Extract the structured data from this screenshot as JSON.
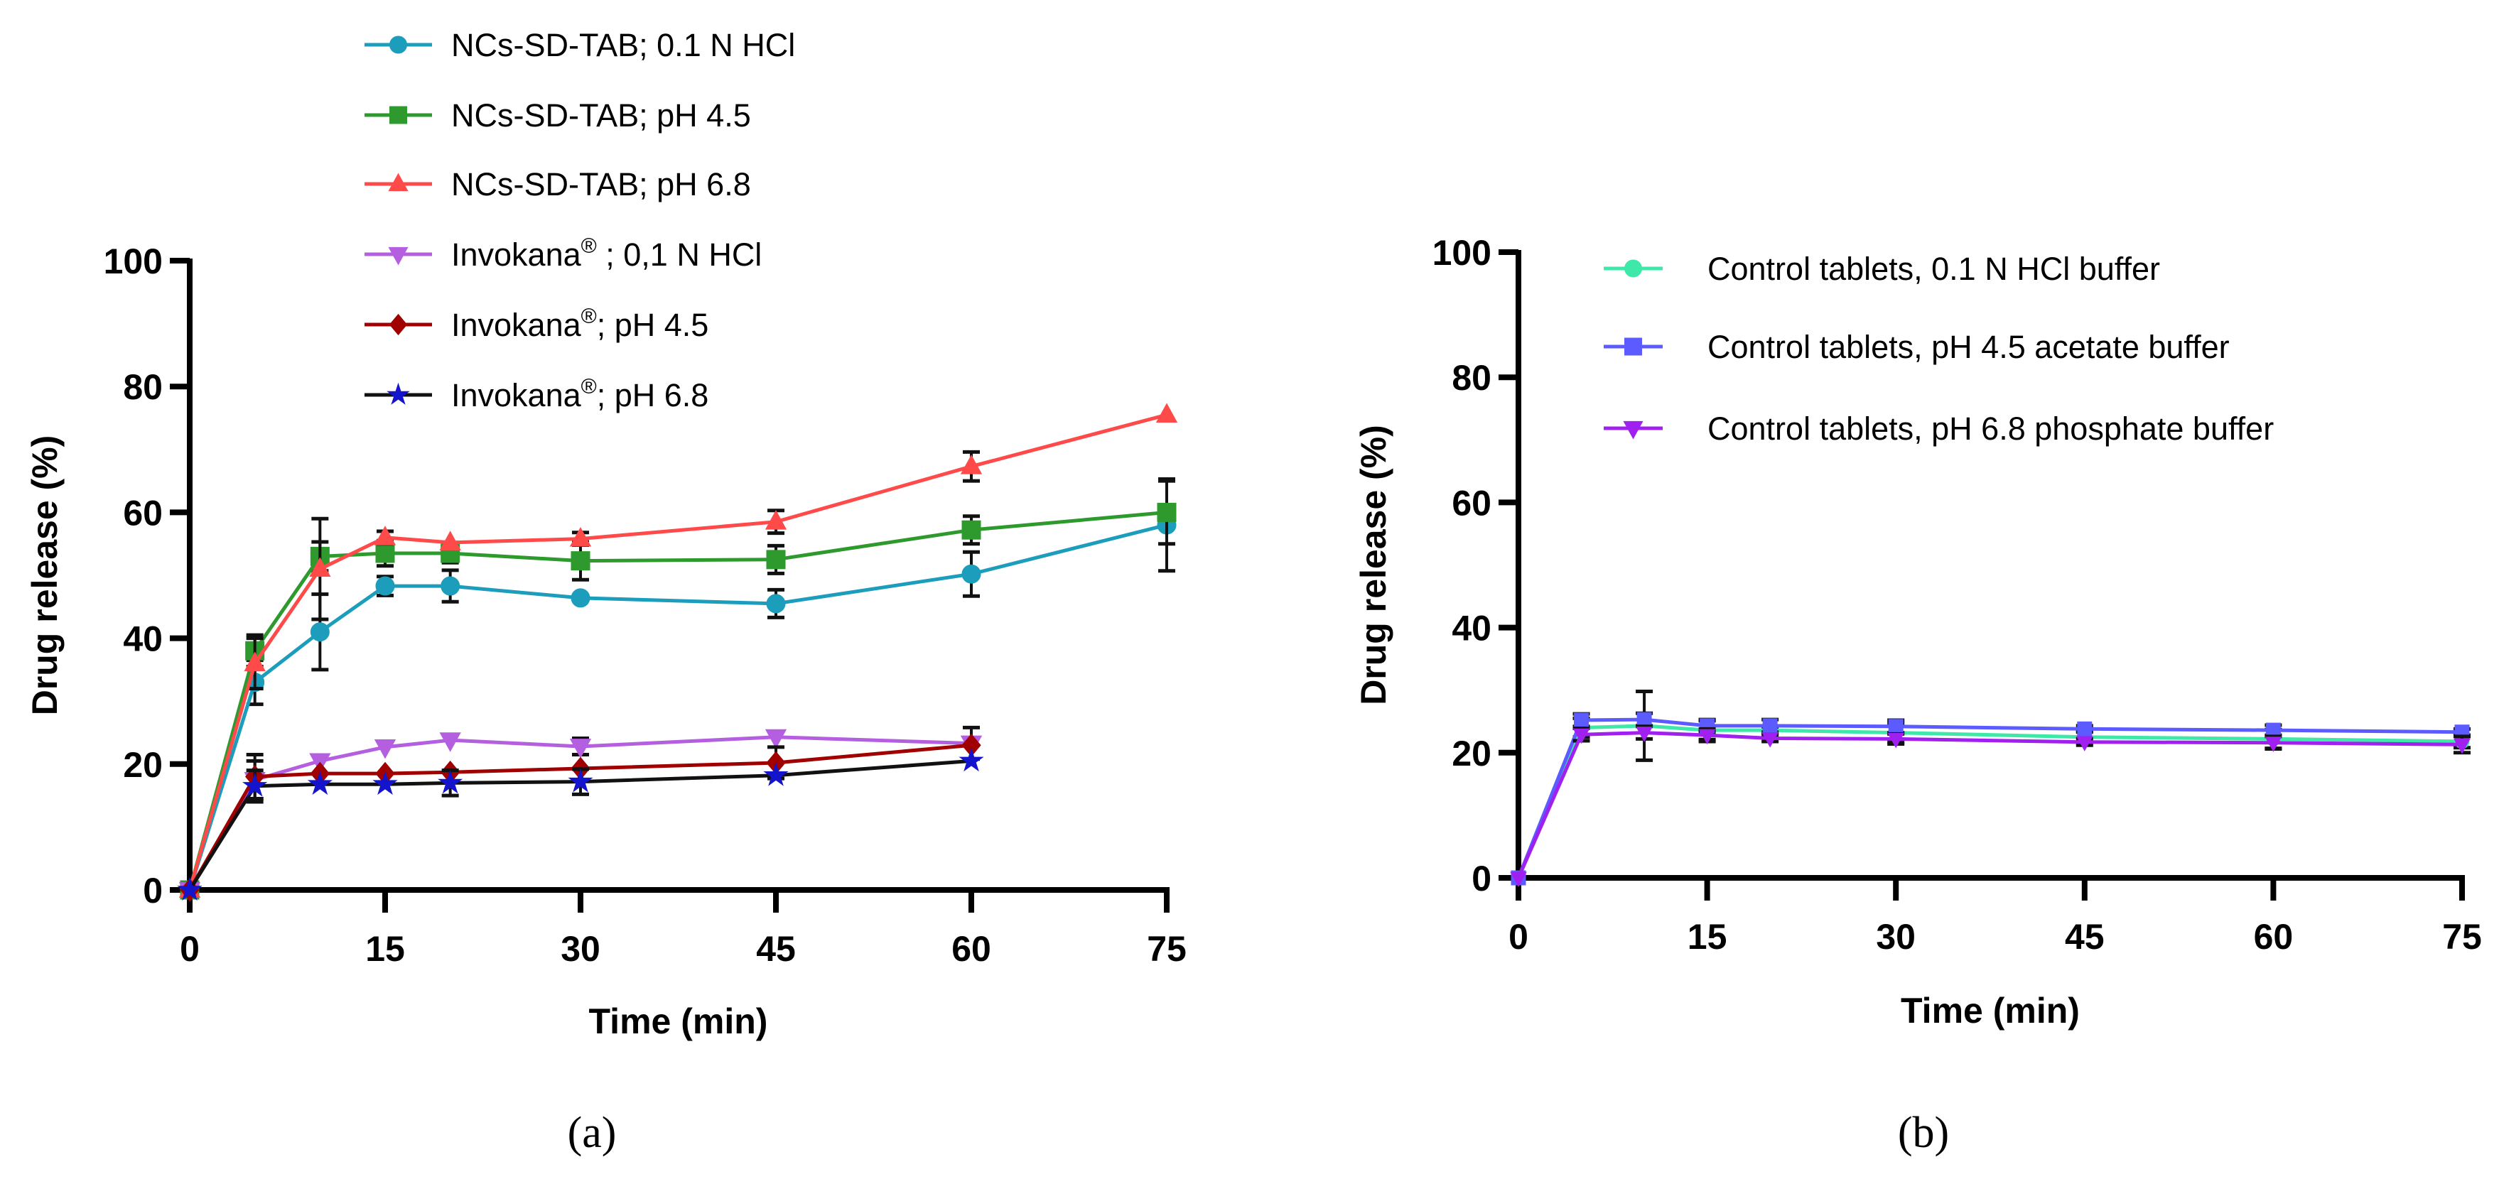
{
  "chart_data": [
    {
      "type": "line",
      "panel_label": "(a)",
      "xlabel": "Time (min)",
      "ylabel": "Drug release (%)",
      "xlim": [
        0,
        75
      ],
      "ylim": [
        0,
        100
      ],
      "xticks": [
        "0",
        "15",
        "30",
        "45",
        "60",
        "75"
      ],
      "yticks": [
        "0",
        "20",
        "40",
        "60",
        "80",
        "100"
      ],
      "legend_position": "top",
      "series": [
        {
          "name": "NCs-SD-TAB; 0.1 N HCl",
          "label_parts": [
            "NCs-SD-TAB; 0.1 N HCl",
            "",
            ""
          ],
          "color": "#1b9dbb",
          "line_color": "#1b9dbb",
          "marker": "circle",
          "x": [
            0,
            5,
            10,
            15,
            20,
            30,
            45,
            60,
            75
          ],
          "y": [
            0,
            33,
            41,
            48.3,
            48.3,
            46.4,
            45.5,
            50.2,
            58
          ],
          "err": [
            0,
            3.5,
            6,
            1.5,
            2.5,
            0,
            2.2,
            3.5,
            7.3
          ]
        },
        {
          "name": "NCs-SD-TAB; pH 4.5",
          "label_parts": [
            "NCs-SD-TAB; pH 4.5",
            "",
            ""
          ],
          "color": "#2e9a2e",
          "line_color": "#2e9a2e",
          "marker": "square",
          "x": [
            0,
            5,
            10,
            15,
            20,
            30,
            45,
            60,
            75
          ],
          "y": [
            0,
            38,
            53,
            53.5,
            53.5,
            52.3,
            52.5,
            57.2,
            60
          ],
          "err": [
            0,
            2.5,
            2.3,
            2,
            1.5,
            3,
            2.2,
            2.2,
            5
          ]
        },
        {
          "name": "NCs-SD-TAB; pH 6.8",
          "label_parts": [
            "NCs-SD-TAB; pH 6.8",
            "",
            ""
          ],
          "color": "#ff4a4a",
          "line_color": "#ff4a4a",
          "marker": "triangle",
          "x": [
            0,
            5,
            10,
            15,
            20,
            30,
            45,
            60,
            75
          ],
          "y": [
            0,
            36,
            51,
            56,
            55.2,
            55.8,
            58.5,
            67.3,
            75.5
          ],
          "err": [
            0,
            4,
            8,
            1,
            0,
            1,
            1.8,
            2.3,
            0
          ]
        },
        {
          "name": "Invokana® ; 0,1 N HCl",
          "label_parts": [
            "Invokana",
            "®",
            " ; 0,1 N HCl"
          ],
          "color": "#b45ee0",
          "line_color": "#b45ee0",
          "marker": "triangle-down",
          "x": [
            0,
            5,
            10,
            15,
            20,
            30,
            45,
            60
          ],
          "y": [
            0,
            17.5,
            20.5,
            22.7,
            23.8,
            22.8,
            24.3,
            23.3
          ],
          "err": [
            0,
            3,
            0,
            0,
            0,
            1.3,
            0,
            2.5
          ]
        },
        {
          "name": "Invokana®; pH 4.5",
          "label_parts": [
            "Invokana",
            "®",
            "; pH 4.5"
          ],
          "color": "#a00000",
          "line_color": "#a00000",
          "marker": "diamond",
          "x": [
            0,
            5,
            10,
            15,
            20,
            30,
            45,
            60
          ],
          "y": [
            0,
            18,
            18.5,
            18.5,
            18.7,
            19.3,
            20.2,
            23
          ],
          "err": [
            0,
            3.5,
            0,
            0,
            0,
            0,
            2.5,
            0
          ]
        },
        {
          "name": "Invokana®; pH 6.8",
          "label_parts": [
            "Invokana",
            "®",
            "; pH 6.8"
          ],
          "color": "#1414cc",
          "line_color": "#111111",
          "marker": "star",
          "x": [
            0,
            5,
            10,
            15,
            20,
            30,
            45,
            60
          ],
          "y": [
            0,
            16.5,
            16.8,
            16.8,
            17,
            17.2,
            18.2,
            20.5
          ],
          "err": [
            0,
            2.5,
            0,
            0,
            2,
            2,
            0,
            0
          ]
        }
      ]
    },
    {
      "type": "line",
      "panel_label": "(b)",
      "xlabel": "Time (min)",
      "ylabel": "Drug release (%)",
      "xlim": [
        0,
        75
      ],
      "ylim": [
        0,
        100
      ],
      "xticks": [
        "0",
        "15",
        "30",
        "45",
        "60",
        "75"
      ],
      "yticks": [
        "0",
        "20",
        "40",
        "60",
        "80",
        "100"
      ],
      "legend_position": "top-right",
      "series": [
        {
          "name": "Control tablets, 0.1 N HCl buffer",
          "label_parts": [
            "Control tablets, 0.1 N HCl buffer",
            "",
            ""
          ],
          "color": "#3ee8a8",
          "line_color": "#3ee8a8",
          "marker": "circle",
          "x": [
            0,
            5,
            10,
            15,
            20,
            30,
            45,
            60,
            75
          ],
          "y": [
            0,
            24,
            24.3,
            23.6,
            23.6,
            23.2,
            22.5,
            22.2,
            21.8
          ],
          "err": [
            0,
            1.5,
            5.5,
            1.5,
            0.5,
            1.5,
            1,
            1.5,
            1
          ]
        },
        {
          "name": "Control tablets, pH 4.5 acetate buffer",
          "label_parts": [
            "Control tablets, pH 4.5 acetate buffer",
            "",
            ""
          ],
          "color": "#5b5bff",
          "line_color": "#5b5bff",
          "marker": "square",
          "x": [
            0,
            5,
            10,
            15,
            20,
            30,
            45,
            60,
            75
          ],
          "y": [
            0,
            25.2,
            25.3,
            24.3,
            24.3,
            24.2,
            23.8,
            23.6,
            23.3
          ],
          "err": [
            0,
            1,
            1,
            1,
            1,
            1,
            0.5,
            0.8,
            0.5
          ]
        },
        {
          "name": "Control tablets, pH 6.8 phosphate buffer",
          "label_parts": [
            "Control tablets, pH 6.8 phosphate buffer",
            "",
            ""
          ],
          "color": "#a020f0",
          "line_color": "#a020f0",
          "marker": "triangle-down",
          "x": [
            0,
            5,
            10,
            15,
            20,
            30,
            45,
            60,
            75
          ],
          "y": [
            0,
            22.9,
            23.2,
            22.8,
            22.3,
            22.2,
            21.7,
            21.6,
            21.3
          ],
          "err": [
            0,
            1,
            1,
            1,
            0.5,
            0.8,
            0.5,
            1,
            1.3
          ]
        }
      ]
    }
  ]
}
